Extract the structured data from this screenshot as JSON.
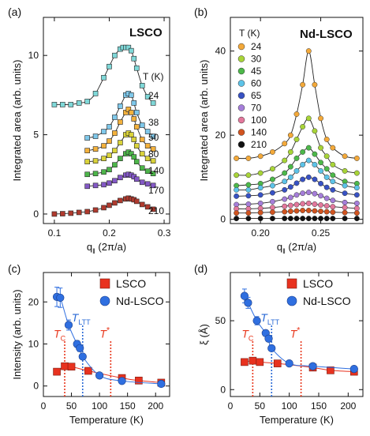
{
  "chart_data": [
    {
      "panel": "(a)",
      "type": "scatter",
      "title": "LSCO",
      "xlabel": "q‖ (2π/a)",
      "ylabel": "Integrated area (arb. units)",
      "xlim": [
        0.08,
        0.31
      ],
      "ylim": [
        -0.6,
        12.4
      ],
      "xticks": [
        "0.1",
        "0.2",
        "0.3"
      ],
      "yticks": [
        "0",
        "5",
        "10"
      ],
      "legend_title": "T (K)",
      "series": [
        {
          "name": "24",
          "color": "#7fd8d8",
          "x": [
            0.1,
            0.115,
            0.13,
            0.145,
            0.16,
            0.175,
            0.19,
            0.2,
            0.21,
            0.22,
            0.225,
            0.23,
            0.235,
            0.24,
            0.245,
            0.25,
            0.26,
            0.27,
            0.28
          ],
          "y": [
            6.9,
            6.9,
            6.9,
            7.0,
            7.1,
            7.6,
            8.6,
            9.3,
            10.0,
            10.4,
            10.5,
            10.5,
            10.5,
            10.3,
            9.8,
            9.2,
            8.1,
            7.4,
            7.0
          ]
        },
        {
          "name": "38",
          "color": "#7fc8ea",
          "x": [
            0.16,
            0.175,
            0.19,
            0.2,
            0.21,
            0.22,
            0.23,
            0.235,
            0.24,
            0.245,
            0.25,
            0.26,
            0.27,
            0.28
          ],
          "y": [
            4.8,
            4.9,
            5.2,
            5.5,
            6.1,
            6.8,
            7.5,
            7.6,
            7.5,
            7.0,
            6.4,
            5.6,
            5.2,
            4.9
          ]
        },
        {
          "name": "50",
          "color": "#f3b13c",
          "x": [
            0.16,
            0.175,
            0.19,
            0.2,
            0.21,
            0.22,
            0.23,
            0.235,
            0.24,
            0.245,
            0.25,
            0.26,
            0.27,
            0.28
          ],
          "y": [
            4.0,
            4.1,
            4.3,
            4.6,
            5.1,
            5.8,
            6.4,
            6.6,
            6.4,
            6.0,
            5.5,
            4.7,
            4.3,
            4.1
          ]
        },
        {
          "name": "80",
          "color": "#d9d23a",
          "x": [
            0.16,
            0.175,
            0.19,
            0.2,
            0.21,
            0.22,
            0.23,
            0.235,
            0.24,
            0.245,
            0.25,
            0.26,
            0.27,
            0.28
          ],
          "y": [
            3.3,
            3.35,
            3.5,
            3.7,
            4.0,
            4.5,
            5.0,
            5.1,
            5.0,
            4.7,
            4.3,
            3.8,
            3.5,
            3.35
          ]
        },
        {
          "name": "140",
          "color": "#4db64a",
          "x": [
            0.16,
            0.175,
            0.19,
            0.2,
            0.21,
            0.22,
            0.23,
            0.235,
            0.24,
            0.245,
            0.25,
            0.26,
            0.27,
            0.28
          ],
          "y": [
            2.5,
            2.55,
            2.65,
            2.8,
            3.1,
            3.5,
            3.8,
            3.9,
            3.8,
            3.6,
            3.3,
            2.9,
            2.7,
            2.55
          ]
        },
        {
          "name": "170",
          "color": "#8459c6",
          "x": [
            0.16,
            0.175,
            0.19,
            0.2,
            0.21,
            0.22,
            0.23,
            0.235,
            0.24,
            0.245,
            0.25,
            0.26,
            0.27,
            0.28
          ],
          "y": [
            1.75,
            1.8,
            1.85,
            1.95,
            2.1,
            2.3,
            2.45,
            2.5,
            2.45,
            2.35,
            2.2,
            2.0,
            1.9,
            1.8
          ]
        },
        {
          "name": "210",
          "color": "#b03a2e",
          "x": [
            0.1,
            0.115,
            0.13,
            0.145,
            0.16,
            0.175,
            0.19,
            0.2,
            0.21,
            0.22,
            0.23,
            0.235,
            0.24,
            0.245,
            0.25,
            0.26,
            0.27,
            0.28
          ],
          "y": [
            0.0,
            0.02,
            0.05,
            0.1,
            0.15,
            0.25,
            0.4,
            0.55,
            0.7,
            0.85,
            0.95,
            1.0,
            0.95,
            0.9,
            0.8,
            0.6,
            0.45,
            0.3
          ]
        }
      ]
    },
    {
      "panel": "(b)",
      "type": "scatter",
      "title": "Nd-LSCO",
      "xlabel": "q‖ (2π/a)",
      "ylabel": "Integrated area (arb. units)",
      "xlim": [
        0.175,
        0.285
      ],
      "ylim": [
        -1.0,
        48.0
      ],
      "xticks": [
        "0.20",
        "0.25"
      ],
      "yticks": [
        "0",
        "20",
        "40"
      ],
      "legend_title": "T (K)",
      "series": [
        {
          "name": "24",
          "color": "#f3a93a",
          "x": [
            0.18,
            0.19,
            0.2,
            0.21,
            0.22,
            0.225,
            0.23,
            0.235,
            0.24,
            0.245,
            0.25,
            0.255,
            0.26,
            0.27,
            0.28
          ],
          "y": [
            14.5,
            14.5,
            15,
            16,
            18,
            20,
            25,
            32,
            40,
            32,
            24,
            19,
            17,
            15,
            14.5
          ]
        },
        {
          "name": "30",
          "color": "#a8d438",
          "x": [
            0.18,
            0.19,
            0.2,
            0.21,
            0.22,
            0.225,
            0.23,
            0.235,
            0.24,
            0.245,
            0.25,
            0.255,
            0.26,
            0.27,
            0.28
          ],
          "y": [
            10.5,
            10.5,
            11,
            12,
            14,
            16,
            19,
            22,
            24,
            21,
            17,
            15,
            13,
            11.5,
            11
          ]
        },
        {
          "name": "45",
          "color": "#4db84a",
          "x": [
            0.18,
            0.19,
            0.2,
            0.21,
            0.22,
            0.225,
            0.23,
            0.235,
            0.24,
            0.245,
            0.25,
            0.255,
            0.26,
            0.27,
            0.28
          ],
          "y": [
            8,
            8.2,
            8.5,
            9.5,
            11,
            12.5,
            14.5,
            16,
            17,
            15.5,
            13.5,
            12,
            10.5,
            9,
            8.5
          ]
        },
        {
          "name": "60",
          "color": "#5dc3e8",
          "x": [
            0.18,
            0.19,
            0.2,
            0.21,
            0.22,
            0.225,
            0.23,
            0.235,
            0.24,
            0.245,
            0.25,
            0.255,
            0.26,
            0.27,
            0.28
          ],
          "y": [
            7,
            7,
            7.5,
            8,
            9,
            10,
            11.5,
            13,
            14,
            13,
            11.5,
            10,
            9,
            8,
            7.5
          ]
        },
        {
          "name": "65",
          "color": "#3852c4",
          "x": [
            0.18,
            0.19,
            0.2,
            0.21,
            0.22,
            0.225,
            0.23,
            0.235,
            0.24,
            0.245,
            0.25,
            0.255,
            0.26,
            0.27,
            0.28
          ],
          "y": [
            5.5,
            5.6,
            5.8,
            6.3,
            7,
            7.7,
            8.6,
            9.5,
            10,
            9.5,
            8.5,
            7.6,
            7,
            6.2,
            5.8
          ]
        },
        {
          "name": "70",
          "color": "#a57ed9",
          "x": [
            0.18,
            0.19,
            0.2,
            0.21,
            0.22,
            0.225,
            0.23,
            0.235,
            0.24,
            0.245,
            0.25,
            0.255,
            0.26,
            0.27,
            0.28
          ],
          "y": [
            3.5,
            3.6,
            3.8,
            4.2,
            4.8,
            5.2,
            5.8,
            6.2,
            6.4,
            6.1,
            5.6,
            5,
            4.5,
            4,
            3.8
          ]
        },
        {
          "name": "100",
          "color": "#e3789c",
          "x": [
            0.18,
            0.19,
            0.2,
            0.21,
            0.22,
            0.225,
            0.23,
            0.235,
            0.24,
            0.245,
            0.25,
            0.255,
            0.26,
            0.27,
            0.28
          ],
          "y": [
            2.5,
            2.5,
            2.6,
            2.8,
            3.1,
            3.3,
            3.5,
            3.7,
            3.8,
            3.6,
            3.4,
            3.2,
            3,
            2.8,
            2.6
          ]
        },
        {
          "name": "140",
          "color": "#d1541f",
          "x": [
            0.18,
            0.19,
            0.2,
            0.21,
            0.22,
            0.225,
            0.23,
            0.235,
            0.24,
            0.245,
            0.25,
            0.255,
            0.26,
            0.27,
            0.28
          ],
          "y": [
            1.5,
            1.5,
            1.6,
            1.7,
            1.8,
            1.9,
            2,
            2.1,
            2.1,
            2,
            1.9,
            1.8,
            1.7,
            1.6,
            1.5
          ]
        },
        {
          "name": "210",
          "color": "#111111",
          "x": [
            0.18,
            0.19,
            0.2,
            0.21,
            0.22,
            0.225,
            0.23,
            0.235,
            0.24,
            0.245,
            0.25,
            0.255,
            0.26,
            0.27,
            0.28
          ],
          "y": [
            0.2,
            0.2,
            0.2,
            0.2,
            0.2,
            0.2,
            0.2,
            0.2,
            0.2,
            0.2,
            0.2,
            0.2,
            0.2,
            0.2,
            0.2
          ]
        }
      ]
    },
    {
      "panel": "(c)",
      "type": "scatter",
      "xlabel": "Temperature (K)",
      "ylabel": "Intensity (arb. units)",
      "xlim": [
        0,
        225
      ],
      "ylim": [
        -2.5,
        27
      ],
      "xticks": [
        "0",
        "50",
        "100",
        "150",
        "200"
      ],
      "yticks": [
        "0",
        "10",
        "20"
      ],
      "annotations": [
        {
          "text": "T",
          "sub": "C",
          "color": "#e8371c",
          "x": 38
        },
        {
          "text": "T",
          "sub": "LTT",
          "color": "#2a6ad6",
          "x": 70
        },
        {
          "text": "T",
          "sup": "*",
          "color": "#e8371c",
          "x": 120
        }
      ],
      "series": [
        {
          "name": "LSCO",
          "color": "#e8321f",
          "marker": "square",
          "x": [
            24,
            38,
            50,
            80,
            140,
            170,
            210
          ],
          "y": [
            3.4,
            4.7,
            4.6,
            3.6,
            1.9,
            1.3,
            0.8
          ],
          "yerr": [
            0.3,
            0.3,
            0.3,
            0.3,
            0.3,
            0.3,
            0.3
          ]
        },
        {
          "name": "Nd-LSCO",
          "color": "#2f6fe0",
          "marker": "circle",
          "x": [
            24,
            30,
            45,
            60,
            65,
            70,
            100,
            140,
            210
          ],
          "y": [
            21.2,
            21,
            14.5,
            10,
            9,
            7,
            2.5,
            1.2,
            0.5
          ],
          "yerr": [
            2.3,
            2.3,
            1.2,
            0.8,
            0.8,
            0.6,
            0.4,
            0.3,
            0.2
          ]
        }
      ]
    },
    {
      "panel": "(d)",
      "type": "scatter",
      "xlabel": "Temperature (K)",
      "ylabel": "ξ (Å)",
      "xlim": [
        0,
        225
      ],
      "ylim": [
        -5,
        85
      ],
      "xticks": [
        "0",
        "50",
        "100",
        "150",
        "200"
      ],
      "yticks": [
        "0",
        "50"
      ],
      "annotations": [
        {
          "text": "T",
          "sub": "C",
          "color": "#e8371c",
          "x": 38
        },
        {
          "text": "T",
          "sub": "LTT",
          "color": "#2a6ad6",
          "x": 70
        },
        {
          "text": "T",
          "sup": "*",
          "color": "#e8371c",
          "x": 120
        }
      ],
      "series": [
        {
          "name": "LSCO",
          "color": "#e8321f",
          "marker": "square",
          "x": [
            24,
            38,
            50,
            80,
            140,
            170,
            210
          ],
          "y": [
            20,
            21,
            20,
            19,
            16,
            14,
            13
          ],
          "yerr": [
            1,
            1,
            1,
            1,
            1,
            1,
            1
          ]
        },
        {
          "name": "Nd-LSCO",
          "color": "#2f6fe0",
          "marker": "circle",
          "x": [
            24,
            30,
            45,
            60,
            65,
            70,
            100,
            140,
            210
          ],
          "y": [
            68,
            63,
            50,
            41,
            37,
            30,
            19,
            17,
            15
          ],
          "yerr": [
            5,
            4,
            3,
            2,
            2,
            2,
            1,
            1,
            1
          ]
        }
      ]
    }
  ]
}
